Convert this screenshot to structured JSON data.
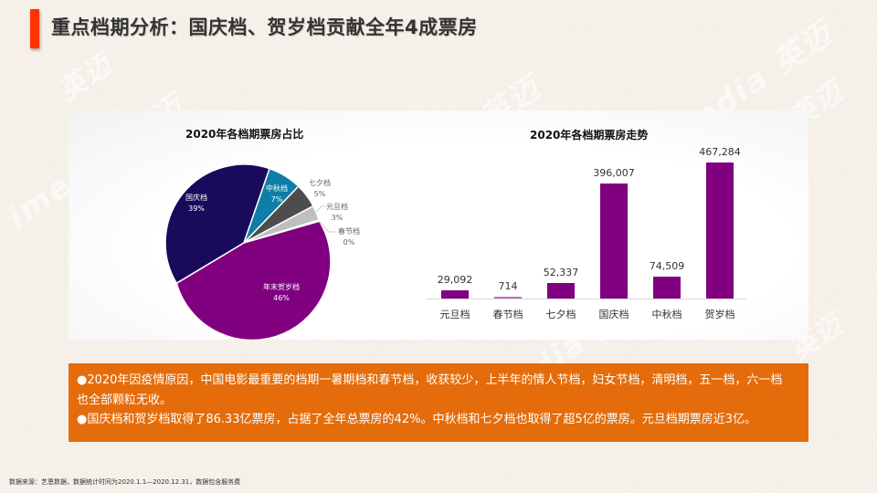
{
  "page": {
    "title": "重点档期分析：国庆档、贺岁档贡献全年4成票房",
    "accent_color": "#ff3300",
    "watermark": "imedia 英迈"
  },
  "chart_data": [
    {
      "type": "pie",
      "title": "2020年各档期票房占比",
      "categories": [
        "国庆档",
        "中秋档",
        "七夕档",
        "元旦档",
        "春节档",
        "年末贺岁档"
      ],
      "values": [
        39,
        7,
        5,
        3,
        0,
        46
      ],
      "labels": [
        "39%",
        "7%",
        "5%",
        "3%",
        "0%",
        "46%"
      ],
      "colors": [
        "#1a0a5c",
        "#0e7ea8",
        "#4d4d4d",
        "#bfbfbf",
        "#dddddd",
        "#800080"
      ],
      "unit": "%"
    },
    {
      "type": "bar",
      "title": "2020年各档期票房走势",
      "categories": [
        "元旦档",
        "春节档",
        "七夕档",
        "国庆档",
        "中秋档",
        "贺岁档"
      ],
      "values": [
        29092,
        714,
        52337,
        396007,
        74509,
        467284
      ],
      "value_labels": [
        "29,092",
        "714",
        "52,337",
        "396,007",
        "74,509",
        "467,284"
      ],
      "color": "#800080",
      "xlabel": "",
      "ylabel": "",
      "ylim": [
        0,
        467284
      ],
      "grid": false,
      "legend": "none"
    }
  ],
  "notes": {
    "line1": "●2020年因疫情原因，中国电影最重要的档期一暑期档和春节档，收获较少，上半年的情人节档，妇女节档，清明档，五一档，六一档",
    "line2": "也全部颗粒无收。",
    "line3": "●国庆档和贺岁档取得了86.33亿票房，占据了全年总票房的42%。中秋档和七夕档也取得了超5亿的票房。元旦档期票房近3亿。",
    "background_color": "#e46c0a"
  },
  "footer": {
    "source": "数据来源：艺恩数据，数据统计时间为2020.1.1—2020.12.31，数据包含服务费"
  }
}
